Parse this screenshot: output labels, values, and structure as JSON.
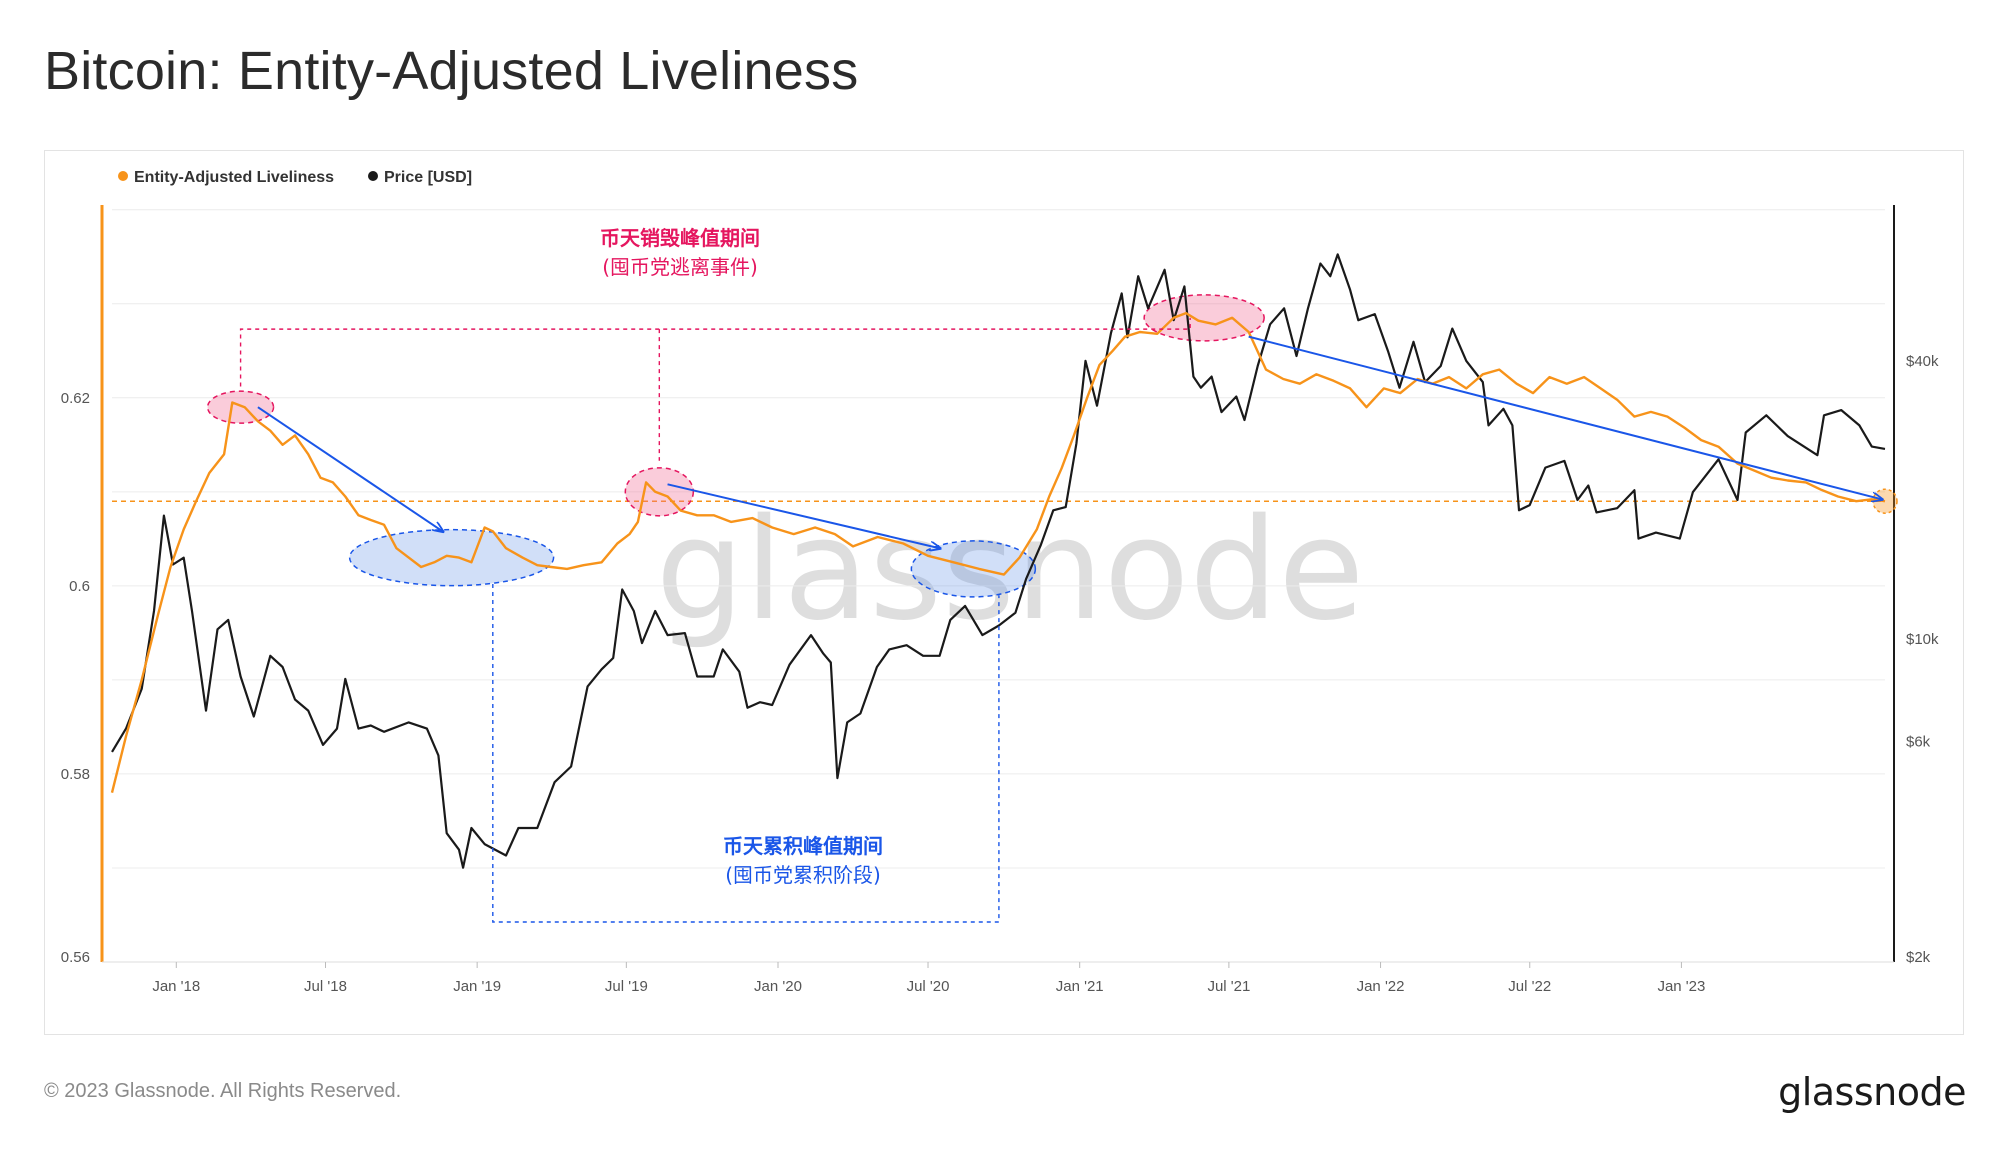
{
  "header": {
    "title": "Bitcoin: Entity-Adjusted Liveliness"
  },
  "footer": {
    "copyright": "© 2023 Glassnode. All Rights Reserved.",
    "logo": "glassnode"
  },
  "watermark": "glassnode",
  "colors": {
    "liveliness": "#f7931a",
    "price": "#1a1a1a",
    "red_annotation": "#e5165f",
    "blue_annotation": "#1a56e8"
  },
  "chart_data": {
    "type": "line",
    "legend": {
      "placement": "top-left",
      "entries": [
        "Entity-Adjusted Liveliness",
        "Price [USD]"
      ]
    },
    "x_ticks": [
      "Jan '18",
      "Jul '18",
      "Jan '19",
      "Jul '19",
      "Jan '20",
      "Jul '20",
      "Jan '21",
      "Jul '21",
      "Jan '22",
      "Jul '22",
      "Jan '23"
    ],
    "x_range": [
      "2017-10-15",
      "2023-09-05"
    ],
    "y_left": {
      "ticks": [
        "0.56",
        "0.58",
        "0.6",
        "0.62"
      ],
      "range": [
        0.56,
        0.6405
      ]
    },
    "y_right": {
      "scale": "log",
      "ticks": [
        "$2k",
        "$6k",
        "$10k",
        "$40k"
      ],
      "tick_values": [
        2000,
        6000,
        10000,
        40000
      ],
      "range": [
        2000,
        87000
      ]
    },
    "series": [
      {
        "name": "Entity-Adjusted Liveliness",
        "axis": "left",
        "points": [
          [
            "2017-10-15",
            0.578
          ],
          [
            "2017-11-01",
            0.584
          ],
          [
            "2017-11-20",
            0.59
          ],
          [
            "2017-12-10",
            0.597
          ],
          [
            "2017-12-25",
            0.602
          ],
          [
            "2018-01-10",
            0.606
          ],
          [
            "2018-01-25",
            0.609
          ],
          [
            "2018-02-10",
            0.612
          ],
          [
            "2018-02-28",
            0.614
          ],
          [
            "2018-03-10",
            0.6195
          ],
          [
            "2018-03-25",
            0.619
          ],
          [
            "2018-04-10",
            0.6175
          ],
          [
            "2018-04-25",
            0.6165
          ],
          [
            "2018-05-10",
            0.615
          ],
          [
            "2018-05-25",
            0.616
          ],
          [
            "2018-06-10",
            0.614
          ],
          [
            "2018-06-25",
            0.6115
          ],
          [
            "2018-07-10",
            0.611
          ],
          [
            "2018-07-25",
            0.6095
          ],
          [
            "2018-08-10",
            0.6075
          ],
          [
            "2018-08-25",
            0.607
          ],
          [
            "2018-09-10",
            0.6065
          ],
          [
            "2018-09-25",
            0.604
          ],
          [
            "2018-10-10",
            0.603
          ],
          [
            "2018-10-25",
            0.602
          ],
          [
            "2018-11-10",
            0.6025
          ],
          [
            "2018-11-25",
            0.6032
          ],
          [
            "2018-12-10",
            0.603
          ],
          [
            "2018-12-25",
            0.6025
          ],
          [
            "2019-01-10",
            0.6062
          ],
          [
            "2019-01-20",
            0.6058
          ],
          [
            "2019-02-05",
            0.604
          ],
          [
            "2019-02-25",
            0.603
          ],
          [
            "2019-03-15",
            0.6022
          ],
          [
            "2019-04-01",
            0.602
          ],
          [
            "2019-04-20",
            0.6018
          ],
          [
            "2019-05-10",
            0.6022
          ],
          [
            "2019-06-01",
            0.6025
          ],
          [
            "2019-06-20",
            0.6045
          ],
          [
            "2019-07-05",
            0.6055
          ],
          [
            "2019-07-15",
            0.6068
          ],
          [
            "2019-07-25",
            0.611
          ],
          [
            "2019-08-05",
            0.61
          ],
          [
            "2019-08-20",
            0.6095
          ],
          [
            "2019-09-05",
            0.608
          ],
          [
            "2019-09-25",
            0.6075
          ],
          [
            "2019-10-15",
            0.6075
          ],
          [
            "2019-11-05",
            0.6068
          ],
          [
            "2019-12-01",
            0.6072
          ],
          [
            "2019-12-25",
            0.6062
          ],
          [
            "2020-01-20",
            0.6055
          ],
          [
            "2020-02-15",
            0.6062
          ],
          [
            "2020-03-10",
            0.6055
          ],
          [
            "2020-04-01",
            0.6042
          ],
          [
            "2020-05-01",
            0.6052
          ],
          [
            "2020-06-01",
            0.6045
          ],
          [
            "2020-07-01",
            0.6032
          ],
          [
            "2020-08-01",
            0.6025
          ],
          [
            "2020-09-01",
            0.6018
          ],
          [
            "2020-10-01",
            0.6012
          ],
          [
            "2020-10-20",
            0.603
          ],
          [
            "2020-11-10",
            0.606
          ],
          [
            "2020-11-25",
            0.6095
          ],
          [
            "2020-12-10",
            0.6125
          ],
          [
            "2020-12-25",
            0.616
          ],
          [
            "2021-01-10",
            0.62
          ],
          [
            "2021-01-25",
            0.6235
          ],
          [
            "2021-02-10",
            0.625
          ],
          [
            "2021-02-25",
            0.6265
          ],
          [
            "2021-03-15",
            0.627
          ],
          [
            "2021-04-05",
            0.6268
          ],
          [
            "2021-04-25",
            0.6285
          ],
          [
            "2021-05-10",
            0.629
          ],
          [
            "2021-05-25",
            0.6282
          ],
          [
            "2021-06-15",
            0.6278
          ],
          [
            "2021-07-05",
            0.6285
          ],
          [
            "2021-07-25",
            0.627
          ],
          [
            "2021-08-15",
            0.623
          ],
          [
            "2021-09-05",
            0.622
          ],
          [
            "2021-09-25",
            0.6215
          ],
          [
            "2021-10-15",
            0.6225
          ],
          [
            "2021-11-05",
            0.6218
          ],
          [
            "2021-11-25",
            0.621
          ],
          [
            "2021-12-15",
            0.619
          ],
          [
            "2022-01-05",
            0.621
          ],
          [
            "2022-01-25",
            0.6205
          ],
          [
            "2022-02-15",
            0.622
          ],
          [
            "2022-03-05",
            0.6215
          ],
          [
            "2022-03-25",
            0.6222
          ],
          [
            "2022-04-15",
            0.621
          ],
          [
            "2022-05-05",
            0.6225
          ],
          [
            "2022-05-25",
            0.623
          ],
          [
            "2022-06-15",
            0.6215
          ],
          [
            "2022-07-05",
            0.6205
          ],
          [
            "2022-07-25",
            0.6222
          ],
          [
            "2022-08-15",
            0.6215
          ],
          [
            "2022-09-05",
            0.6222
          ],
          [
            "2022-09-25",
            0.621
          ],
          [
            "2022-10-15",
            0.6198
          ],
          [
            "2022-11-05",
            0.618
          ],
          [
            "2022-11-25",
            0.6185
          ],
          [
            "2022-12-15",
            0.618
          ],
          [
            "2023-01-05",
            0.6168
          ],
          [
            "2023-01-25",
            0.6155
          ],
          [
            "2023-02-15",
            0.6148
          ],
          [
            "2023-03-10",
            0.613
          ],
          [
            "2023-04-01",
            0.6122
          ],
          [
            "2023-04-20",
            0.6115
          ],
          [
            "2023-05-10",
            0.6112
          ],
          [
            "2023-06-01",
            0.611
          ],
          [
            "2023-06-20",
            0.6102
          ],
          [
            "2023-07-10",
            0.6095
          ],
          [
            "2023-08-01",
            0.609
          ],
          [
            "2023-08-20",
            0.6092
          ],
          [
            "2023-09-05",
            0.609
          ]
        ]
      },
      {
        "name": "Price [USD]",
        "axis": "right",
        "points": [
          [
            "2017-10-15",
            5700
          ],
          [
            "2017-11-01",
            6400
          ],
          [
            "2017-11-20",
            7800
          ],
          [
            "2017-12-05",
            11500
          ],
          [
            "2017-12-17",
            18500
          ],
          [
            "2017-12-28",
            14500
          ],
          [
            "2018-01-10",
            15000
          ],
          [
            "2018-01-20",
            11500
          ],
          [
            "2018-02-06",
            7000
          ],
          [
            "2018-02-20",
            10500
          ],
          [
            "2018-03-05",
            11000
          ],
          [
            "2018-03-20",
            8300
          ],
          [
            "2018-04-05",
            6800
          ],
          [
            "2018-04-25",
            9200
          ],
          [
            "2018-05-10",
            8700
          ],
          [
            "2018-05-25",
            7400
          ],
          [
            "2018-06-10",
            7000
          ],
          [
            "2018-06-28",
            5900
          ],
          [
            "2018-07-15",
            6400
          ],
          [
            "2018-07-25",
            8200
          ],
          [
            "2018-08-10",
            6400
          ],
          [
            "2018-08-25",
            6500
          ],
          [
            "2018-09-10",
            6300
          ],
          [
            "2018-10-10",
            6600
          ],
          [
            "2018-11-01",
            6400
          ],
          [
            "2018-11-15",
            5600
          ],
          [
            "2018-11-25",
            3800
          ],
          [
            "2018-12-10",
            3500
          ],
          [
            "2018-12-15",
            3200
          ],
          [
            "2018-12-25",
            3900
          ],
          [
            "2019-01-10",
            3600
          ],
          [
            "2019-02-05",
            3400
          ],
          [
            "2019-02-20",
            3900
          ],
          [
            "2019-03-15",
            3900
          ],
          [
            "2019-04-05",
            4900
          ],
          [
            "2019-04-25",
            5300
          ],
          [
            "2019-05-15",
            7900
          ],
          [
            "2019-06-01",
            8600
          ],
          [
            "2019-06-15",
            9100
          ],
          [
            "2019-06-26",
            12800
          ],
          [
            "2019-07-10",
            11500
          ],
          [
            "2019-07-20",
            9800
          ],
          [
            "2019-08-05",
            11500
          ],
          [
            "2019-08-20",
            10200
          ],
          [
            "2019-09-10",
            10300
          ],
          [
            "2019-09-25",
            8300
          ],
          [
            "2019-10-15",
            8300
          ],
          [
            "2019-10-26",
            9500
          ],
          [
            "2019-11-15",
            8500
          ],
          [
            "2019-11-25",
            7100
          ],
          [
            "2019-12-10",
            7300
          ],
          [
            "2019-12-25",
            7200
          ],
          [
            "2020-01-15",
            8800
          ],
          [
            "2020-02-10",
            10200
          ],
          [
            "2020-02-25",
            9300
          ],
          [
            "2020-03-05",
            8900
          ],
          [
            "2020-03-13",
            5000
          ],
          [
            "2020-03-25",
            6600
          ],
          [
            "2020-04-10",
            6900
          ],
          [
            "2020-04-30",
            8700
          ],
          [
            "2020-05-15",
            9500
          ],
          [
            "2020-06-05",
            9700
          ],
          [
            "2020-06-25",
            9200
          ],
          [
            "2020-07-15",
            9200
          ],
          [
            "2020-07-28",
            11000
          ],
          [
            "2020-08-15",
            11800
          ],
          [
            "2020-09-05",
            10200
          ],
          [
            "2020-09-25",
            10700
          ],
          [
            "2020-10-15",
            11400
          ],
          [
            "2020-10-28",
            13500
          ],
          [
            "2020-11-15",
            16000
          ],
          [
            "2020-11-30",
            19000
          ],
          [
            "2020-12-15",
            19300
          ],
          [
            "2020-12-28",
            26500
          ],
          [
            "2021-01-08",
            40000
          ],
          [
            "2021-01-22",
            32000
          ],
          [
            "2021-02-08",
            46000
          ],
          [
            "2021-02-21",
            56000
          ],
          [
            "2021-02-28",
            45000
          ],
          [
            "2021-03-13",
            61000
          ],
          [
            "2021-03-25",
            52000
          ],
          [
            "2021-04-14",
            63000
          ],
          [
            "2021-04-25",
            49000
          ],
          [
            "2021-05-08",
            58000
          ],
          [
            "2021-05-19",
            37000
          ],
          [
            "2021-05-28",
            35000
          ],
          [
            "2021-06-10",
            37000
          ],
          [
            "2021-06-22",
            31000
          ],
          [
            "2021-07-10",
            33500
          ],
          [
            "2021-07-20",
            29800
          ],
          [
            "2021-08-05",
            39000
          ],
          [
            "2021-08-20",
            48000
          ],
          [
            "2021-09-06",
            52000
          ],
          [
            "2021-09-21",
            41000
          ],
          [
            "2021-10-05",
            52000
          ],
          [
            "2021-10-20",
            65000
          ],
          [
            "2021-11-01",
            61000
          ],
          [
            "2021-11-10",
            68000
          ],
          [
            "2021-11-25",
            57000
          ],
          [
            "2021-12-05",
            49000
          ],
          [
            "2021-12-25",
            50500
          ],
          [
            "2022-01-10",
            42000
          ],
          [
            "2022-01-24",
            35000
          ],
          [
            "2022-02-10",
            44000
          ],
          [
            "2022-02-24",
            36000
          ],
          [
            "2022-03-15",
            39000
          ],
          [
            "2022-03-29",
            47000
          ],
          [
            "2022-04-15",
            40000
          ],
          [
            "2022-05-05",
            36000
          ],
          [
            "2022-05-12",
            29000
          ],
          [
            "2022-05-30",
            31500
          ],
          [
            "2022-06-10",
            29000
          ],
          [
            "2022-06-18",
            19000
          ],
          [
            "2022-07-01",
            19500
          ],
          [
            "2022-07-20",
            23500
          ],
          [
            "2022-08-12",
            24300
          ],
          [
            "2022-08-28",
            20000
          ],
          [
            "2022-09-10",
            21500
          ],
          [
            "2022-09-20",
            18800
          ],
          [
            "2022-10-15",
            19200
          ],
          [
            "2022-11-05",
            21000
          ],
          [
            "2022-11-10",
            16500
          ],
          [
            "2022-12-01",
            17000
          ],
          [
            "2022-12-30",
            16500
          ],
          [
            "2023-01-15",
            20800
          ],
          [
            "2023-02-15",
            24500
          ],
          [
            "2023-03-10",
            20000
          ],
          [
            "2023-03-20",
            28000
          ],
          [
            "2023-04-14",
            30500
          ],
          [
            "2023-05-10",
            27500
          ],
          [
            "2023-06-15",
            25000
          ],
          [
            "2023-06-23",
            30500
          ],
          [
            "2023-07-14",
            31300
          ],
          [
            "2023-08-05",
            29000
          ],
          [
            "2023-08-20",
            26100
          ],
          [
            "2023-09-05",
            25800
          ]
        ]
      }
    ],
    "annotations": {
      "red_label_line1": "币天销毁峰值期间",
      "red_label_line2": "(囤币党逃离事件)",
      "blue_label_line1": "币天累积峰值期间",
      "blue_label_line2": "(囤币党累积阶段)"
    }
  }
}
